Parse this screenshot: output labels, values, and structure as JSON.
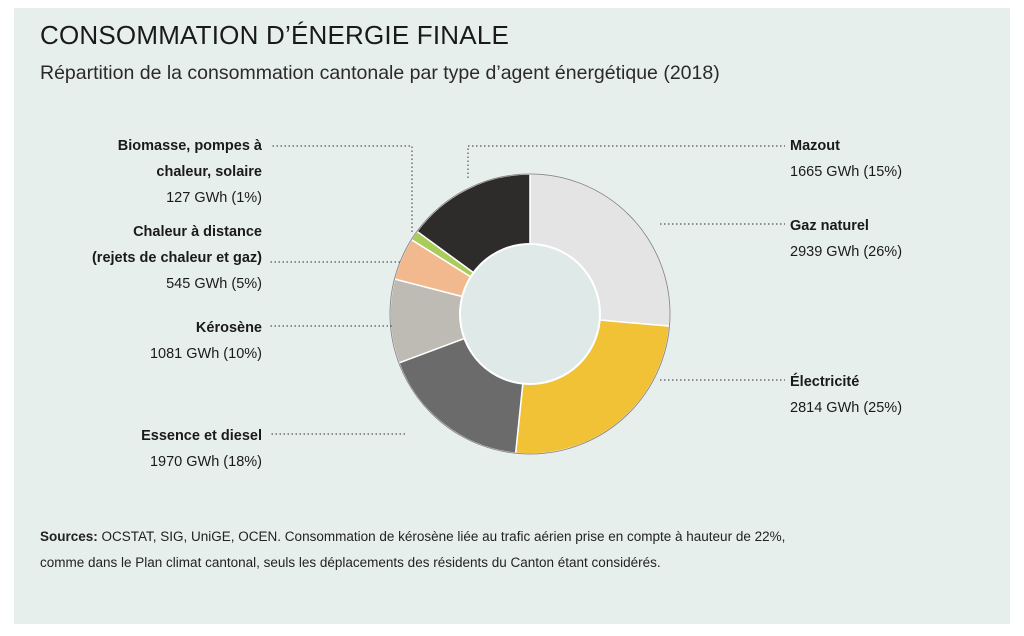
{
  "title": "CONSOMMATION D’ÉNERGIE FINALE",
  "subtitle": "Répartition de la consommation cantonale par type d’agent énergétique (2018)",
  "sources": {
    "label": "Sources:",
    "line1": " OCSTAT, SIG, UniGE, OCEN. Consommation de kérosène liée au trafic aérien prise en compte à hauteur de 22%,",
    "line2": "comme dans le Plan climat cantonal, seuls les déplacements des résidents du Canton étant considérés."
  },
  "chart_data": {
    "type": "pie",
    "variant": "donut",
    "unit": "GWh",
    "slices": [
      {
        "name": "Gaz naturel",
        "name_lines": [
          "Gaz naturel"
        ],
        "value": 2939,
        "percent": 26,
        "color": "#e4e4e4",
        "label_side": "right",
        "value_text": "2939 GWh (26%)"
      },
      {
        "name": "Électricité",
        "name_lines": [
          "Électricité"
        ],
        "value": 2814,
        "percent": 25,
        "color": "#f2c236",
        "label_side": "right",
        "value_text": "2814 GWh (25%)"
      },
      {
        "name": "Essence et diesel",
        "name_lines": [
          "Essence et diesel"
        ],
        "value": 1970,
        "percent": 18,
        "color": "#6b6b6b",
        "label_side": "left",
        "value_text": "1970 GWh (18%)"
      },
      {
        "name": "Kérosène",
        "name_lines": [
          "Kérosène"
        ],
        "value": 1081,
        "percent": 10,
        "color": "#bdbbb4",
        "label_side": "left",
        "value_text": "1081 GWh (10%)"
      },
      {
        "name": "Chaleur à distance (rejets de chaleur et gaz)",
        "name_lines": [
          "Chaleur à distance",
          "(rejets de chaleur et gaz)"
        ],
        "value": 545,
        "percent": 5,
        "color": "#f2b98f",
        "label_side": "left",
        "value_text": "545 GWh (5%)"
      },
      {
        "name": "Biomasse, pompes à chaleur, solaire",
        "name_lines": [
          "Biomasse, pompes à",
          "chaleur, solaire"
        ],
        "value": 127,
        "percent": 1,
        "color": "#a9cc5b",
        "label_side": "left",
        "value_text": "127 GWh (1%)"
      },
      {
        "name": "Mazout",
        "name_lines": [
          "Mazout"
        ],
        "value": 1665,
        "percent": 15,
        "color": "#2e2c2a",
        "label_side": "right",
        "value_text": "1665 GWh (15%)"
      }
    ]
  }
}
